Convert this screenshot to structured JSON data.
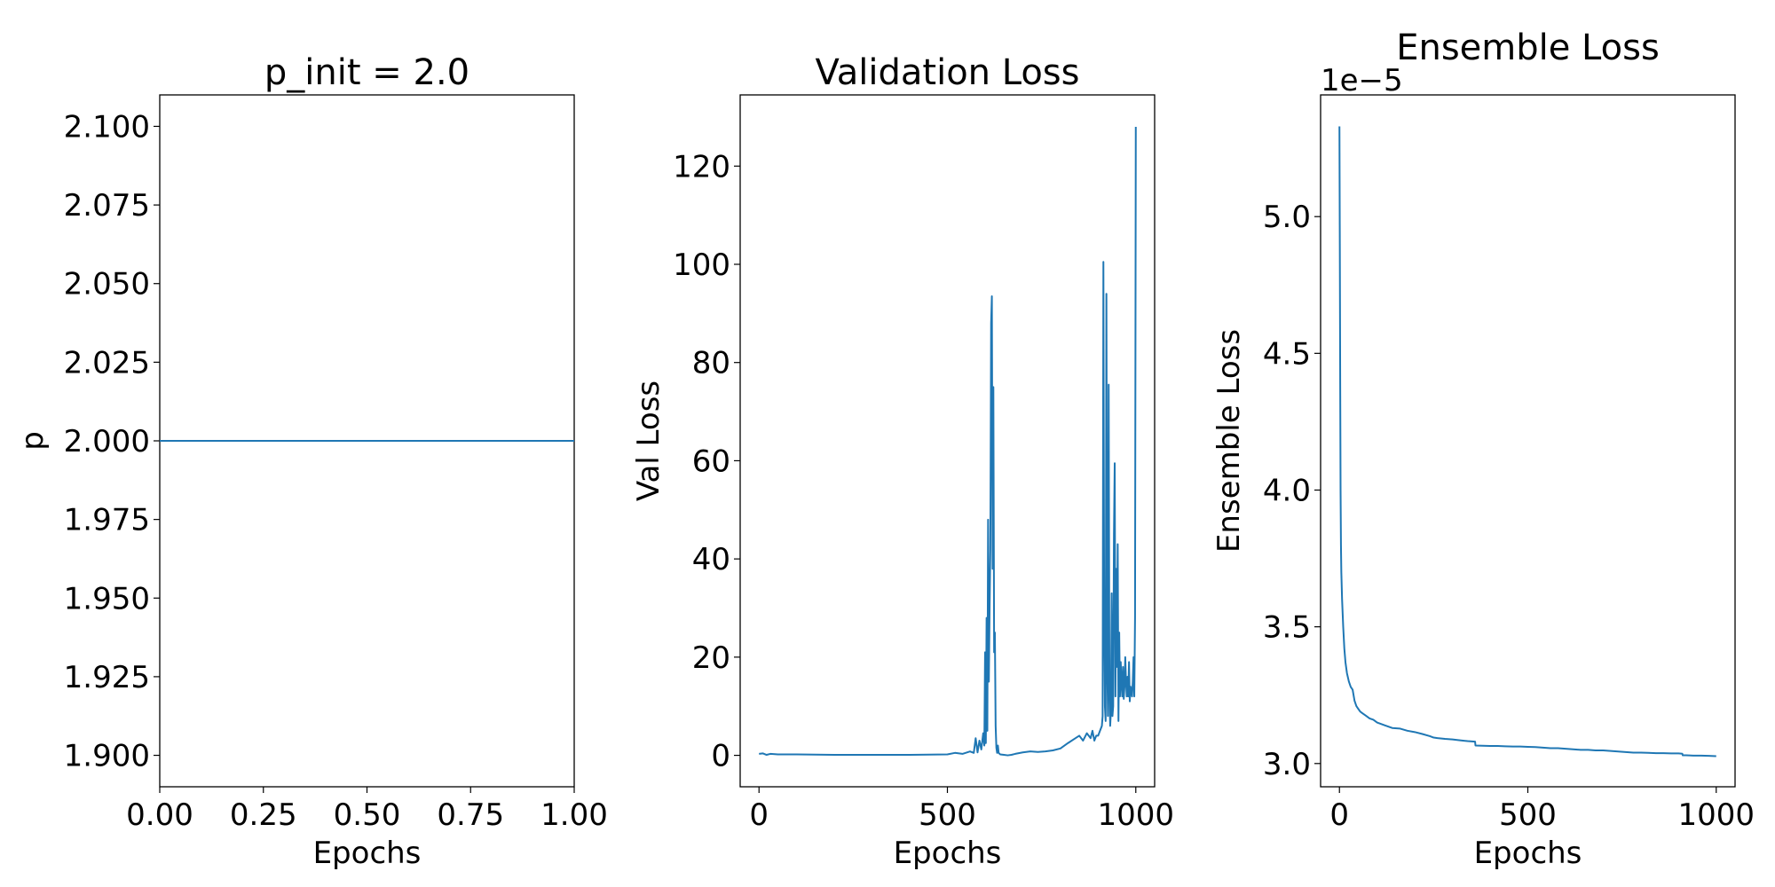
{
  "chart_data": [
    {
      "type": "line",
      "title": "p_init = 2.0",
      "xlabel": "Epochs",
      "ylabel": "p",
      "xlim": [
        0,
        1
      ],
      "ylim": [
        1.89,
        2.11
      ],
      "xticks": [
        0,
        0.25,
        0.5,
        0.75,
        1.0
      ],
      "xtick_labels": [
        "0.00",
        "0.25",
        "0.50",
        "0.75",
        "1.00"
      ],
      "yticks": [
        1.9,
        1.925,
        1.95,
        1.975,
        2.0,
        2.025,
        2.05,
        2.075,
        2.1
      ],
      "ytick_labels": [
        "1.900",
        "1.925",
        "1.950",
        "1.975",
        "2.000",
        "2.025",
        "2.050",
        "2.075",
        "2.100"
      ],
      "grid": false,
      "series_color": "#1f77b4",
      "series": [
        {
          "x": [
            0,
            1
          ],
          "y": [
            2.0,
            2.0
          ]
        }
      ]
    },
    {
      "type": "line",
      "title": "Validation Loss",
      "xlabel": "Epochs",
      "ylabel": "Val Loss",
      "xlim": [
        -50,
        1050
      ],
      "ylim": [
        -6.4,
        134.5
      ],
      "xticks": [
        0,
        500,
        1000
      ],
      "xtick_labels": [
        "0",
        "500",
        "1000"
      ],
      "yticks": [
        0,
        20,
        40,
        60,
        80,
        100,
        120
      ],
      "ytick_labels": [
        "0",
        "20",
        "40",
        "60",
        "80",
        "100",
        "120"
      ],
      "grid": false,
      "series_color": "#1f77b4",
      "series": [
        {
          "x": [
            0,
            10,
            20,
            30,
            50,
            100,
            200,
            300,
            400,
            500,
            520,
            540,
            560,
            570,
            575,
            580,
            585,
            590,
            595,
            598,
            600,
            602,
            604,
            606,
            608,
            610,
            612,
            614,
            616,
            618,
            620,
            622,
            624,
            626,
            628,
            630,
            632,
            634,
            636,
            640,
            650,
            660,
            670,
            680,
            700,
            720,
            740,
            760,
            780,
            800,
            820,
            840,
            850,
            860,
            870,
            880,
            885,
            890,
            895,
            900,
            905,
            910,
            912,
            914,
            916,
            918,
            920,
            922,
            924,
            926,
            928,
            930,
            932,
            934,
            936,
            938,
            940,
            942,
            944,
            946,
            948,
            950,
            952,
            954,
            956,
            958,
            960,
            962,
            964,
            966,
            968,
            970,
            972,
            974,
            976,
            978,
            980,
            982,
            984,
            986,
            988,
            990,
            992,
            994,
            996,
            998,
            1000
          ],
          "y": [
            0.3,
            0.4,
            0.1,
            0.3,
            0.2,
            0.2,
            0.1,
            0.1,
            0.1,
            0.2,
            0.5,
            0.3,
            0.8,
            0.5,
            3.5,
            0.6,
            3.0,
            1.2,
            4.5,
            2.0,
            21.0,
            2.5,
            28.0,
            5.0,
            48.0,
            15.0,
            30.0,
            42.0,
            88.0,
            93.5,
            38.0,
            75.0,
            21.0,
            25.0,
            6.0,
            1.5,
            0.5,
            2.0,
            0.5,
            0.2,
            0.1,
            0.0,
            0.1,
            0.3,
            0.6,
            0.8,
            0.7,
            0.8,
            1.0,
            1.4,
            2.5,
            3.5,
            4.0,
            3.0,
            4.5,
            3.5,
            5.0,
            3.0,
            4.0,
            4.0,
            5.0,
            6.0,
            8.0,
            100.5,
            30.0,
            10.0,
            7.0,
            94.0,
            20.0,
            8.0,
            75.5,
            15.0,
            6.0,
            9.0,
            33.0,
            8.0,
            10.0,
            45.0,
            59.5,
            12.0,
            38.0,
            18.0,
            43.0,
            7.0,
            25.0,
            12.0,
            19.0,
            15.0,
            12.0,
            18.0,
            11.5,
            14.0,
            20.0,
            15.0,
            12.0,
            16.0,
            12.0,
            19.0,
            11.0,
            14.0,
            13.0,
            12.0,
            15.0,
            20.0,
            12.0,
            28.0,
            128.0
          ]
        }
      ]
    },
    {
      "type": "line",
      "title": "Ensemble Loss",
      "xlabel": "Epochs",
      "ylabel": "Ensemble Loss",
      "offset_text": "1e−5",
      "xlim": [
        -50,
        1050
      ],
      "ylim": [
        2.915,
        5.445
      ],
      "y_unit_multiplier": "1e-5",
      "xticks": [
        0,
        500,
        1000
      ],
      "xtick_labels": [
        "0",
        "500",
        "1000"
      ],
      "yticks": [
        3.0,
        3.5,
        4.0,
        4.5,
        5.0
      ],
      "ytick_labels": [
        "3.0",
        "3.5",
        "4.0",
        "4.5",
        "5.0"
      ],
      "grid": false,
      "series_color": "#1f77b4",
      "series": [
        {
          "x": [
            0,
            1,
            2,
            3,
            4,
            5,
            7,
            10,
            13,
            16,
            20,
            25,
            30,
            35,
            40,
            45,
            50,
            55,
            60,
            70,
            80,
            90,
            100,
            120,
            140,
            160,
            180,
            200,
            220,
            240,
            250,
            260,
            280,
            300,
            320,
            340,
            360,
            361,
            380,
            400,
            420,
            440,
            460,
            480,
            500,
            520,
            540,
            560,
            580,
            600,
            620,
            640,
            660,
            680,
            700,
            720,
            740,
            760,
            780,
            800,
            820,
            840,
            860,
            880,
            900,
            910,
            911,
            920,
            940,
            960,
            980,
            1000
          ],
          "y": [
            5.33,
            4.9,
            4.4,
            4.0,
            3.8,
            3.7,
            3.6,
            3.5,
            3.42,
            3.37,
            3.33,
            3.3,
            3.28,
            3.27,
            3.23,
            3.21,
            3.2,
            3.19,
            3.185,
            3.175,
            3.165,
            3.16,
            3.15,
            3.14,
            3.13,
            3.128,
            3.12,
            3.115,
            3.108,
            3.1,
            3.095,
            3.093,
            3.09,
            3.088,
            3.085,
            3.082,
            3.08,
            3.066,
            3.065,
            3.064,
            3.064,
            3.063,
            3.062,
            3.062,
            3.061,
            3.06,
            3.058,
            3.056,
            3.056,
            3.054,
            3.052,
            3.05,
            3.05,
            3.048,
            3.048,
            3.046,
            3.044,
            3.042,
            3.04,
            3.04,
            3.039,
            3.038,
            3.038,
            3.037,
            3.037,
            3.036,
            3.03,
            3.03,
            3.029,
            3.029,
            3.028,
            3.027
          ]
        }
      ]
    }
  ]
}
